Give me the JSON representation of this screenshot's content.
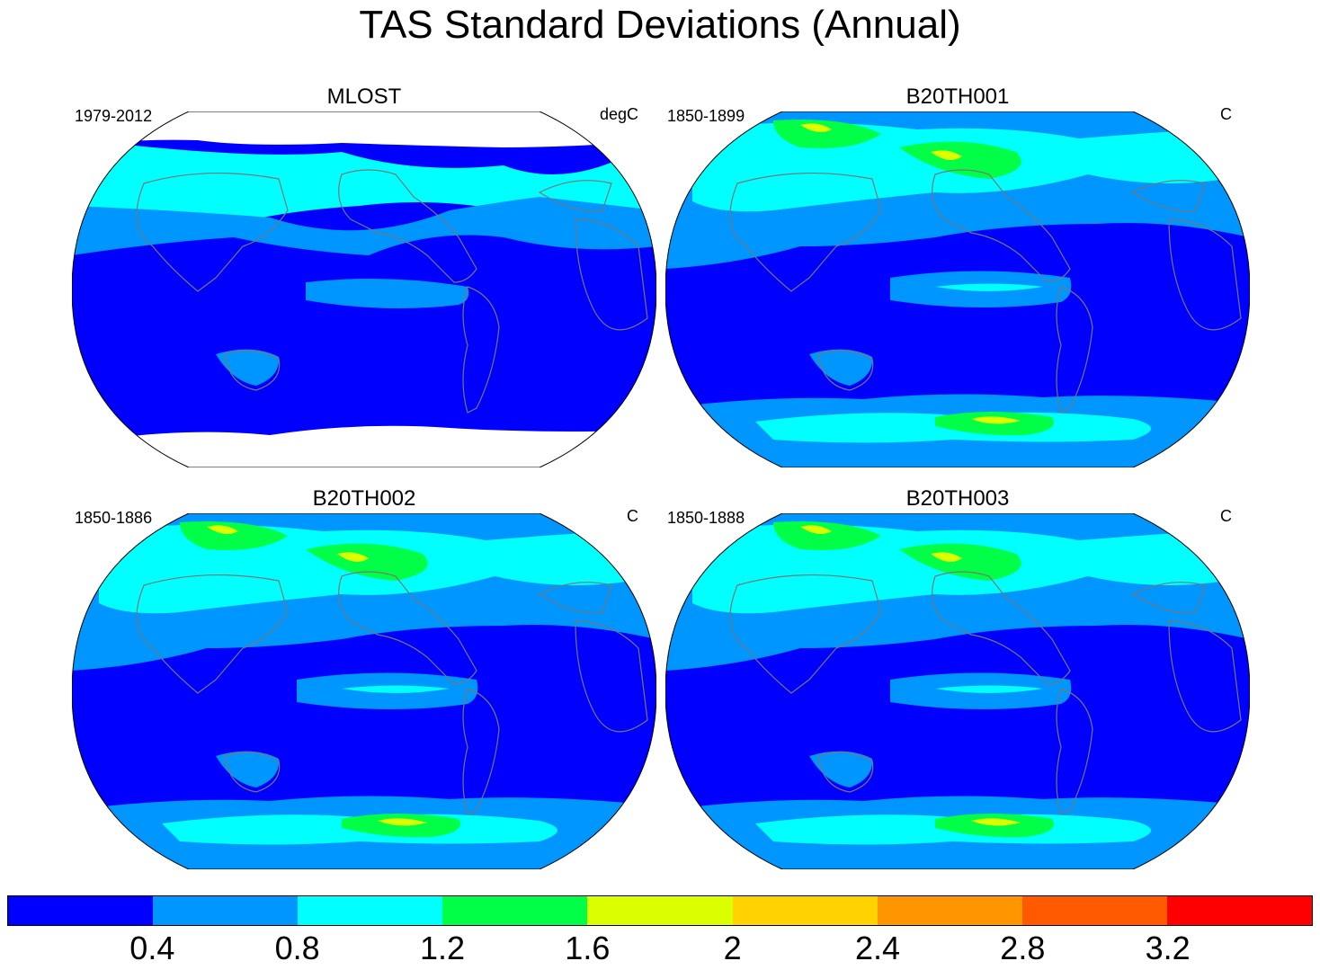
{
  "title": "TAS Standard Deviations (Annual)",
  "panels": [
    {
      "title": "MLOST",
      "period": "1979-2012",
      "units": "degC",
      "missing_poles": true
    },
    {
      "title": "B20TH001",
      "period": "1850-1899",
      "units": "C",
      "missing_poles": false
    },
    {
      "title": "B20TH002",
      "period": "1850-1886",
      "units": "C",
      "missing_poles": false
    },
    {
      "title": "B20TH003",
      "period": "1850-1888",
      "units": "C",
      "missing_poles": false
    }
  ],
  "colorbar": {
    "levels": [
      "0.4",
      "0.8",
      "1.2",
      "1.6",
      "2",
      "2.4",
      "2.8",
      "3.2"
    ],
    "colors": [
      "#0000ff",
      "#0096ff",
      "#00ffff",
      "#00ff46",
      "#dcff00",
      "#ffd200",
      "#ff9600",
      "#ff5a00",
      "#ff0000"
    ]
  },
  "colors": {
    "ocean_low": "#0000ff",
    "mid": "#0096ff",
    "high": "#00ffff",
    "higher": "#00ff46",
    "peak": "#dcff00",
    "coastline": "#777777"
  }
}
